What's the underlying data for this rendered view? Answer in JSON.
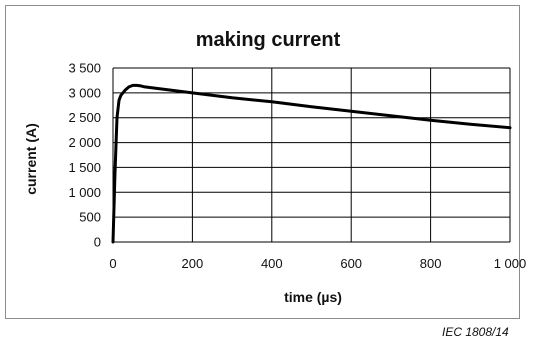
{
  "chart_data": {
    "type": "line",
    "title": "making current",
    "xlabel": "time   (µs)",
    "ylabel": "current (A)",
    "xlim": [
      0,
      1000
    ],
    "ylim": [
      0,
      3500
    ],
    "x_ticks": [
      0,
      200,
      400,
      600,
      800,
      1000
    ],
    "x_tick_labels": [
      "0",
      "200",
      "400",
      "600",
      "800",
      "1 000"
    ],
    "y_ticks": [
      0,
      500,
      1000,
      1500,
      2000,
      2500,
      3000,
      3500
    ],
    "y_tick_labels": [
      "0",
      "500",
      "1 000",
      "1 500",
      "2 000",
      "2 500",
      "3 000",
      "3 500"
    ],
    "grid": true,
    "legend": "none",
    "series": [
      {
        "color": "#000000",
        "x": [
          0,
          5,
          10,
          15,
          20,
          30,
          40,
          50,
          60,
          70,
          80,
          100,
          150,
          200,
          300,
          400,
          500,
          600,
          700,
          800,
          900,
          1000
        ],
        "y": [
          0,
          1400,
          2500,
          2850,
          2950,
          3050,
          3120,
          3150,
          3150,
          3140,
          3120,
          3100,
          3050,
          3000,
          2900,
          2820,
          2720,
          2630,
          2540,
          2450,
          2370,
          2300
        ]
      }
    ]
  },
  "footer": {
    "reference": "IEC  1808/14"
  }
}
